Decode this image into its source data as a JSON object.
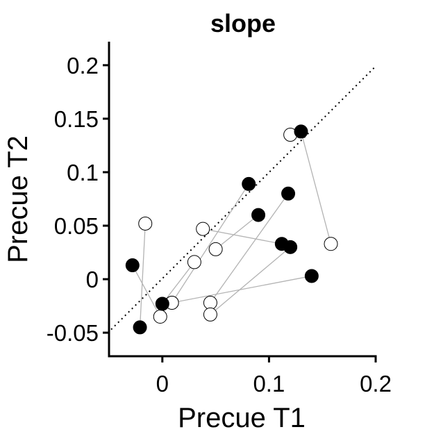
{
  "chart_data": {
    "type": "scatter",
    "title": "slope",
    "xlabel": "Precue T1",
    "ylabel": "Precue T2",
    "xlim": [
      -0.05,
      0.2
    ],
    "ylim": [
      -0.072,
      0.222
    ],
    "xticks": [
      {
        "value": 0,
        "label": "0"
      },
      {
        "value": 0.1,
        "label": "0.1"
      },
      {
        "value": 0.2,
        "label": "0.2"
      }
    ],
    "yticks": [
      {
        "value": -0.05,
        "label": "-0.05"
      },
      {
        "value": 0,
        "label": "0"
      },
      {
        "value": 0.05,
        "label": "0.05"
      },
      {
        "value": 0.1,
        "label": "0.1"
      },
      {
        "value": 0.15,
        "label": "0.15"
      },
      {
        "value": 0.2,
        "label": "0.2"
      }
    ],
    "identity_line": {
      "style": "dotted",
      "from": [
        -0.048,
        -0.047
      ],
      "to": [
        0.2,
        0.199
      ]
    },
    "filled_marker_color": "#000000",
    "open_marker_color": "#ffffff",
    "connector_color": "#b3b3b3",
    "pairs": [
      {
        "filled": [
          -0.028,
          0.013
        ],
        "open": [
          -0.002,
          -0.035
        ]
      },
      {
        "filled": [
          -0.021,
          -0.045
        ],
        "open": [
          -0.016,
          0.052
        ]
      },
      {
        "filled": [
          0.0,
          -0.023
        ],
        "open": [
          0.03,
          0.016
        ]
      },
      {
        "filled": [
          0.081,
          0.089
        ],
        "open": [
          0.009,
          -0.022
        ]
      },
      {
        "filled": [
          0.09,
          0.06
        ],
        "open": [
          0.05,
          0.028
        ]
      },
      {
        "filled": [
          0.112,
          0.033
        ],
        "open": [
          0.038,
          0.047
        ]
      },
      {
        "filled": [
          0.118,
          0.08
        ],
        "open": [
          0.045,
          -0.022
        ]
      },
      {
        "filled": [
          0.12,
          0.03
        ],
        "open": [
          0.045,
          -0.033
        ]
      },
      {
        "filled": [
          0.13,
          0.138
        ],
        "open": [
          0.12,
          0.135
        ]
      },
      {
        "filled": [
          0.13,
          0.138
        ],
        "open": [
          0.158,
          0.033
        ]
      },
      {
        "filled": [
          0.14,
          0.003
        ],
        "open": [
          0.009,
          -0.022
        ]
      }
    ]
  }
}
